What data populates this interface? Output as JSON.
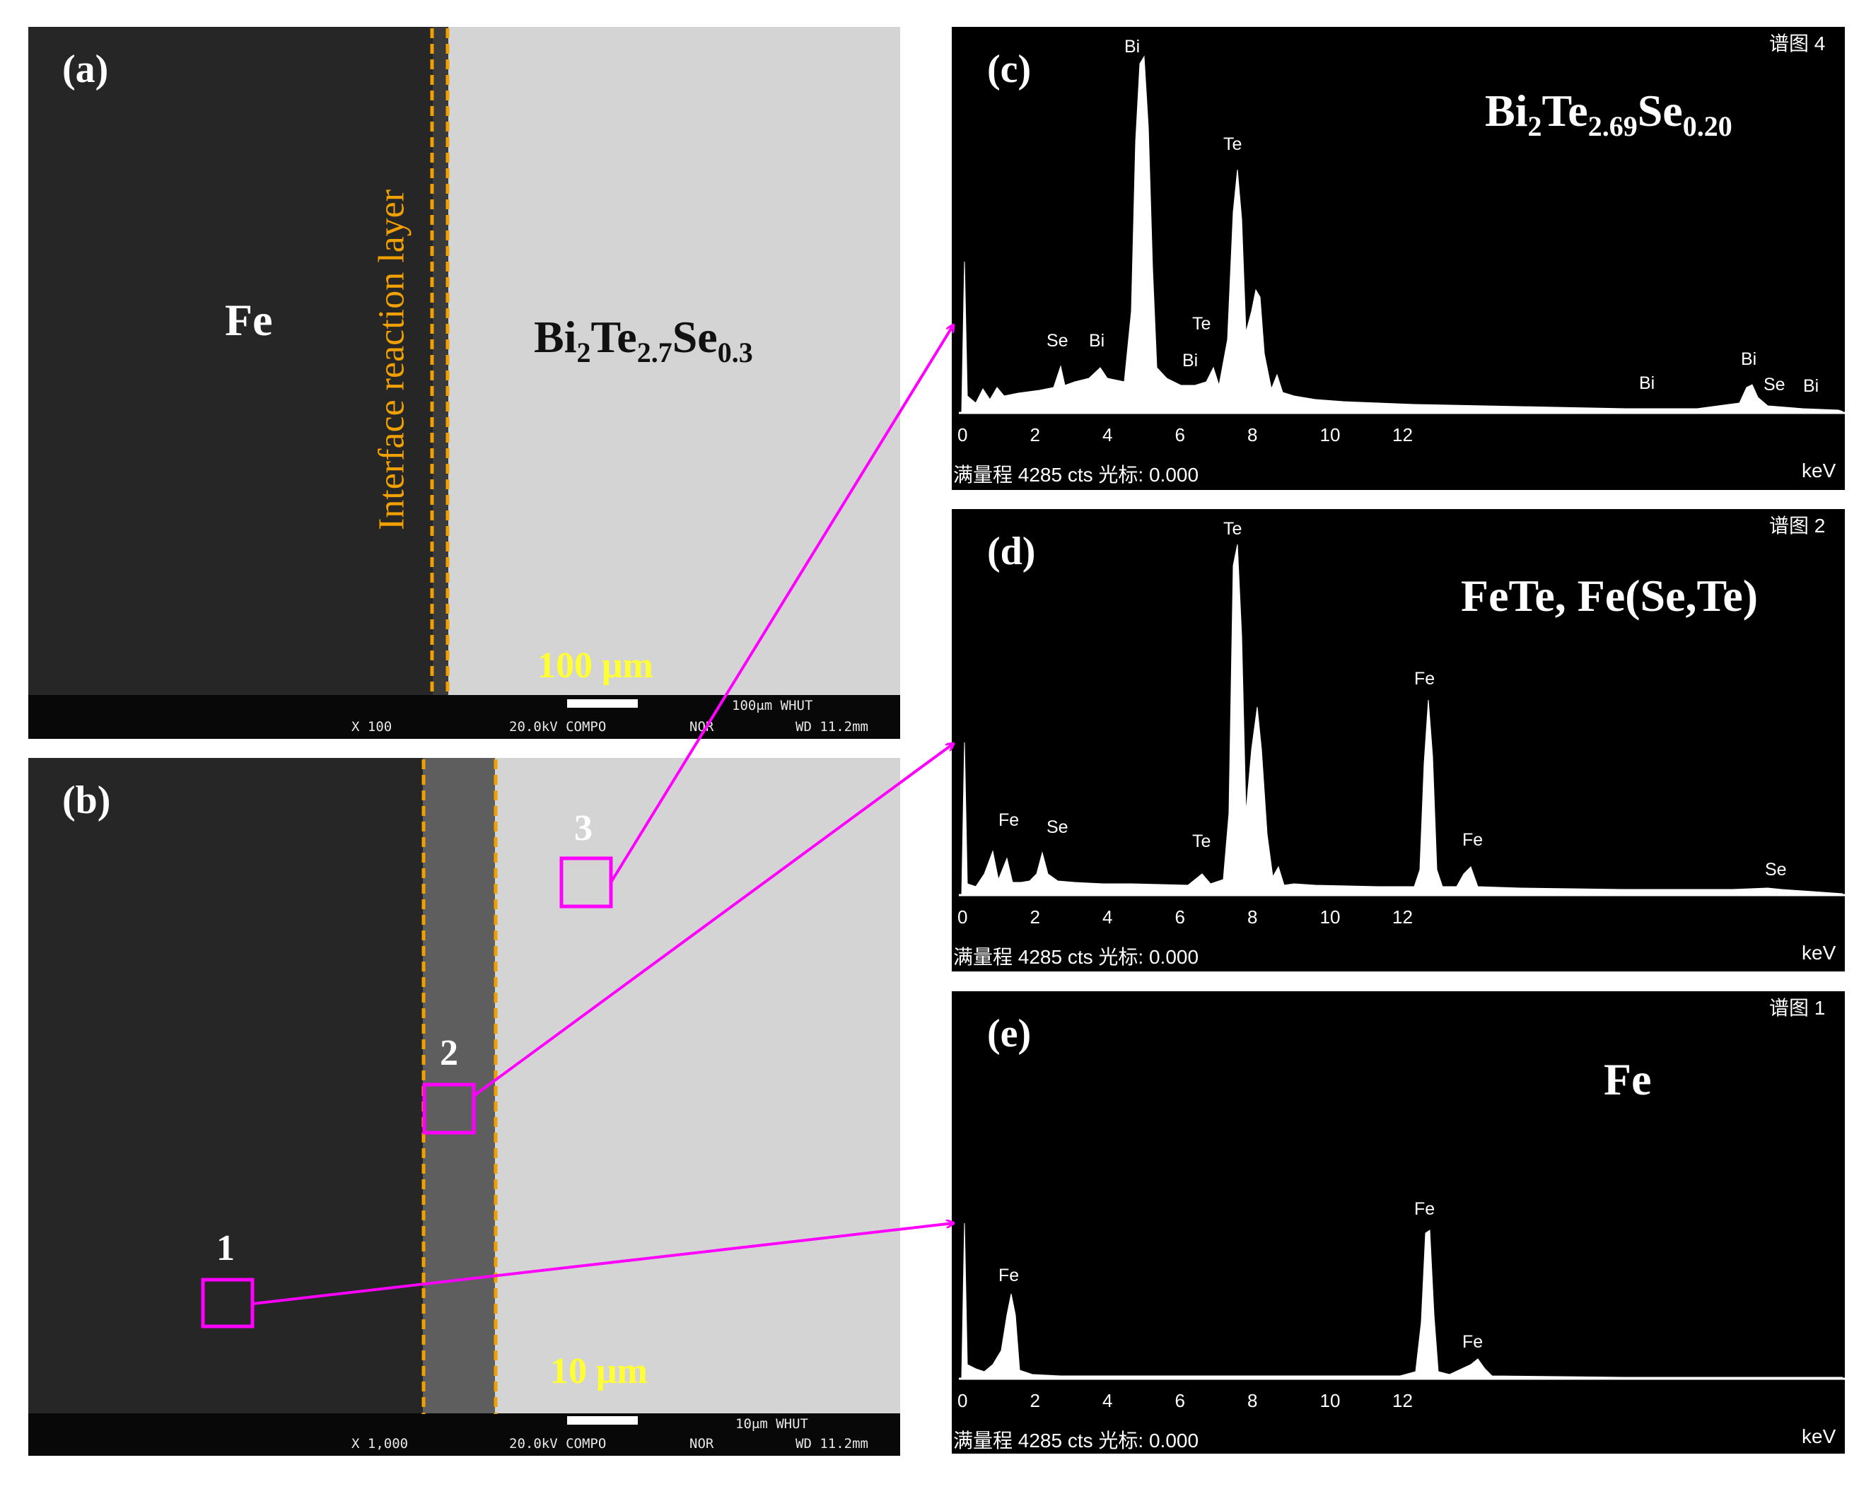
{
  "panel_a": {
    "label": "(a)",
    "left_material": "Fe",
    "right_material": {
      "base": "Bi",
      "s1": "2",
      "t1": "Te",
      "s2": "2.7",
      "t2": "Se",
      "s3": "0.3"
    },
    "layer_label": "Interface reaction layer",
    "scale_text": "100 μm",
    "bar_scale": "100μm WHUT",
    "bar_mag": "X 100",
    "bar_kv": "20.0kV COMPO",
    "bar_nor": "NOR",
    "bar_wd": "WD 11.2mm"
  },
  "panel_b": {
    "label": "(b)",
    "points": [
      "1",
      "2",
      "3"
    ],
    "scale_text": "10 μm",
    "bar_scale": "10μm WHUT",
    "bar_mag": "X 1,000",
    "bar_kv": "20.0kV COMPO",
    "bar_nor": "NOR",
    "bar_wd": "WD 11.2mm"
  },
  "panel_c": {
    "label": "(c)",
    "spectrum_no": "谱图 4",
    "composition": {
      "base": "Bi",
      "s1": "2",
      "t1": "Te",
      "s2": "2.69",
      "t2": "Se",
      "s3": "0.20"
    },
    "peaks": [
      "Bi",
      "Te",
      "Se",
      "Bi",
      "Te",
      "Bi",
      "Bi",
      "Bi",
      "Se",
      "Bi"
    ]
  },
  "panel_d": {
    "label": "(d)",
    "spectrum_no": "谱图 2",
    "composition": "FeTe, Fe(Se,Te)",
    "peaks": [
      "Te",
      "Fe",
      "Se",
      "Te",
      "Fe",
      "Fe",
      "Se"
    ]
  },
  "panel_e": {
    "label": "(e)",
    "spectrum_no": "谱图 1",
    "composition": "Fe",
    "peaks": [
      "Fe",
      "Fe",
      "Fe"
    ]
  },
  "eds_axis": {
    "ticks": [
      "0",
      "2",
      "4",
      "6",
      "8",
      "10",
      "12"
    ],
    "unit": "keV",
    "footer": "满量程 4285 cts 光标: 0.000"
  },
  "colors": {
    "arrow": "#ff00ff",
    "dashed": "#f0a000",
    "scale_text": "#ffff33"
  }
}
